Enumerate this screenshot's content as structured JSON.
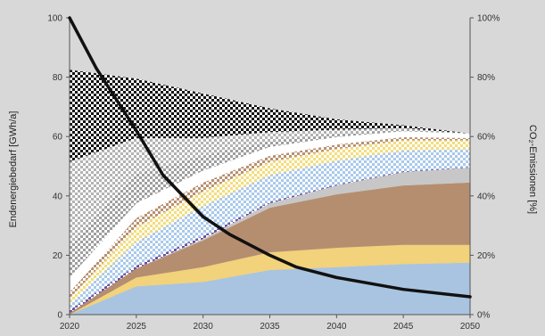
{
  "chart_data": {
    "type": "area",
    "xlabel": "",
    "ylabel": "Endenergiebedarf [GWh/a]",
    "y2label": "CO₂-Emissionen [%]",
    "x_ticks": [
      "2020",
      "2025",
      "2030",
      "2035",
      "2040",
      "2045",
      "2050"
    ],
    "y_ticks": [
      "0",
      "20",
      "40",
      "60",
      "80",
      "100"
    ],
    "y2_ticks": [
      "0%",
      "20%",
      "40%",
      "60%",
      "80%",
      "100%"
    ],
    "ylim": [
      0,
      100
    ],
    "y2lim": [
      0,
      100
    ],
    "grid": false,
    "x": [
      2020,
      2025,
      2030,
      2035,
      2040,
      2045,
      2050
    ],
    "stacked_layers": [
      {
        "values": [
          0,
          9.5,
          11,
          15,
          16,
          17,
          17.5
        ],
        "color": "#a9c4e0",
        "pattern": "solid"
      },
      {
        "values": [
          0,
          3,
          5,
          6,
          6.5,
          6.5,
          6
        ],
        "color": "#f2d27a",
        "pattern": "solid"
      },
      {
        "values": [
          0.5,
          3,
          9,
          15,
          18,
          20,
          21
        ],
        "color": "#b58e6f",
        "pattern": "solid"
      },
      {
        "values": [
          0,
          0,
          0.5,
          1.5,
          3,
          4.5,
          5
        ],
        "color": "#c7c7c7",
        "pattern": "solid"
      },
      {
        "values": [
          1,
          1,
          1,
          0.5,
          0.3,
          0.3,
          0.2
        ],
        "color": "#6b4ea0",
        "pattern": "check"
      },
      {
        "values": [
          2,
          8,
          10,
          9,
          8,
          7,
          6
        ],
        "color": "#a9c9ea",
        "pattern": "check"
      },
      {
        "values": [
          2,
          5,
          5,
          4.5,
          4,
          3.5,
          3
        ],
        "color": "#f3dd7f",
        "pattern": "check"
      },
      {
        "values": [
          2,
          3,
          3,
          2,
          1.5,
          1,
          0.8
        ],
        "color": "#b89070",
        "pattern": "check"
      },
      {
        "values": [
          5,
          5,
          4,
          3,
          2.5,
          2,
          1.5
        ],
        "color": "#ffffff",
        "pattern": "check"
      },
      {
        "values": [
          11,
          10,
          5,
          2,
          1,
          0.5,
          0
        ],
        "color": "#9e9e9e",
        "pattern": "check"
      },
      {
        "values": [
          28,
          12,
          6,
          3,
          1.5,
          0.5,
          0
        ],
        "color": "#b2b2b2",
        "pattern": "check"
      },
      {
        "values": [
          31,
          20,
          15,
          8,
          3.5,
          1,
          0
        ],
        "color": "#111111",
        "pattern": "check"
      }
    ],
    "co2_series": {
      "x": [
        2020,
        2022,
        2025,
        2027,
        2030,
        2032,
        2035,
        2037,
        2040,
        2045,
        2050
      ],
      "values": [
        100,
        83,
        62,
        47,
        33,
        27,
        20,
        16,
        12.5,
        8.5,
        6
      ],
      "color": "#111111",
      "axis": "right"
    }
  }
}
